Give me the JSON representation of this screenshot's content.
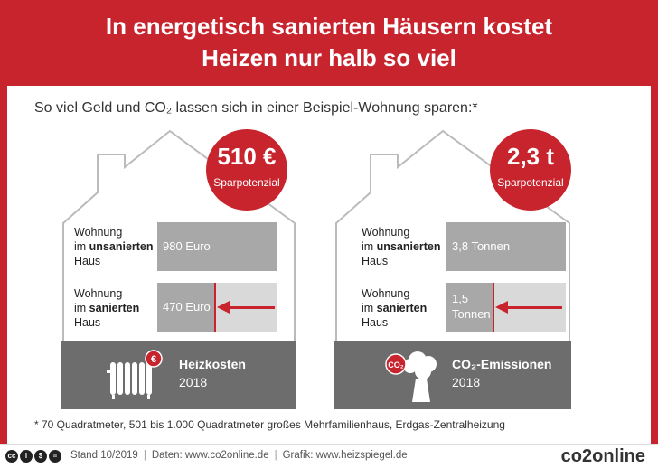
{
  "header": {
    "title_line1": "In energetisch sanierten Häusern kostet",
    "title_line2": "Heizen nur halb so viel"
  },
  "subtitle": "So viel Geld und CO₂ lassen sich in einer Beispiel-Wohnung sparen:*",
  "cards": [
    {
      "badge_value": "510 €",
      "badge_label": "Sparpotenzial",
      "row1_label_pre": "Wohnung",
      "row1_label_mid_prefix": "im ",
      "row1_label_bold": "unsanierten",
      "row1_label_post": "Haus",
      "row1_value": "980 Euro",
      "row2_label_pre": "Wohnung",
      "row2_label_mid_prefix": "im ",
      "row2_label_bold": "sanierten",
      "row2_label_post": "Haus",
      "row2_value": "470 Euro",
      "row1_fraction": 1.0,
      "row2_fraction": 0.48,
      "category": "Heizkosten",
      "year": "2018",
      "icon": "radiator-icon"
    },
    {
      "badge_value": "2,3 t",
      "badge_label": "Sparpotenzial",
      "row1_label_pre": "Wohnung",
      "row1_label_mid_prefix": "im ",
      "row1_label_bold": "unsanierten",
      "row1_label_post": "Haus",
      "row1_value": "3,8 Tonnen",
      "row2_label_pre": "Wohnung",
      "row2_label_mid_prefix": "im ",
      "row2_label_bold": "sanierten",
      "row2_label_post": "Haus",
      "row2_value_line1": "1,5",
      "row2_value_line2": "Tonnen",
      "row1_fraction": 1.0,
      "row2_fraction": 0.39,
      "category": "CO₂-Emissionen",
      "year": "2018",
      "icon": "co2-cloud-icon"
    }
  ],
  "footnote": "* 70 Quadratmeter, 501 bis 1.000 Quadratmeter großes Mehrfamilienhaus, Erdgas-Zentralheizung",
  "footer": {
    "stand": "Stand 10/2019",
    "daten": "Daten: www.co2online.de",
    "grafik": "Grafik: www.heizspiegel.de",
    "brand": "co2online",
    "separator": "|",
    "license_icons": [
      "cc-icon",
      "by-icon",
      "nc-icon",
      "nd-icon"
    ]
  },
  "colors": {
    "brand_red": "#c8242e",
    "bar_dark": "#a8a8a8",
    "bar_light": "#d9d9d9",
    "bottom_gray": "#6d6d6d"
  }
}
